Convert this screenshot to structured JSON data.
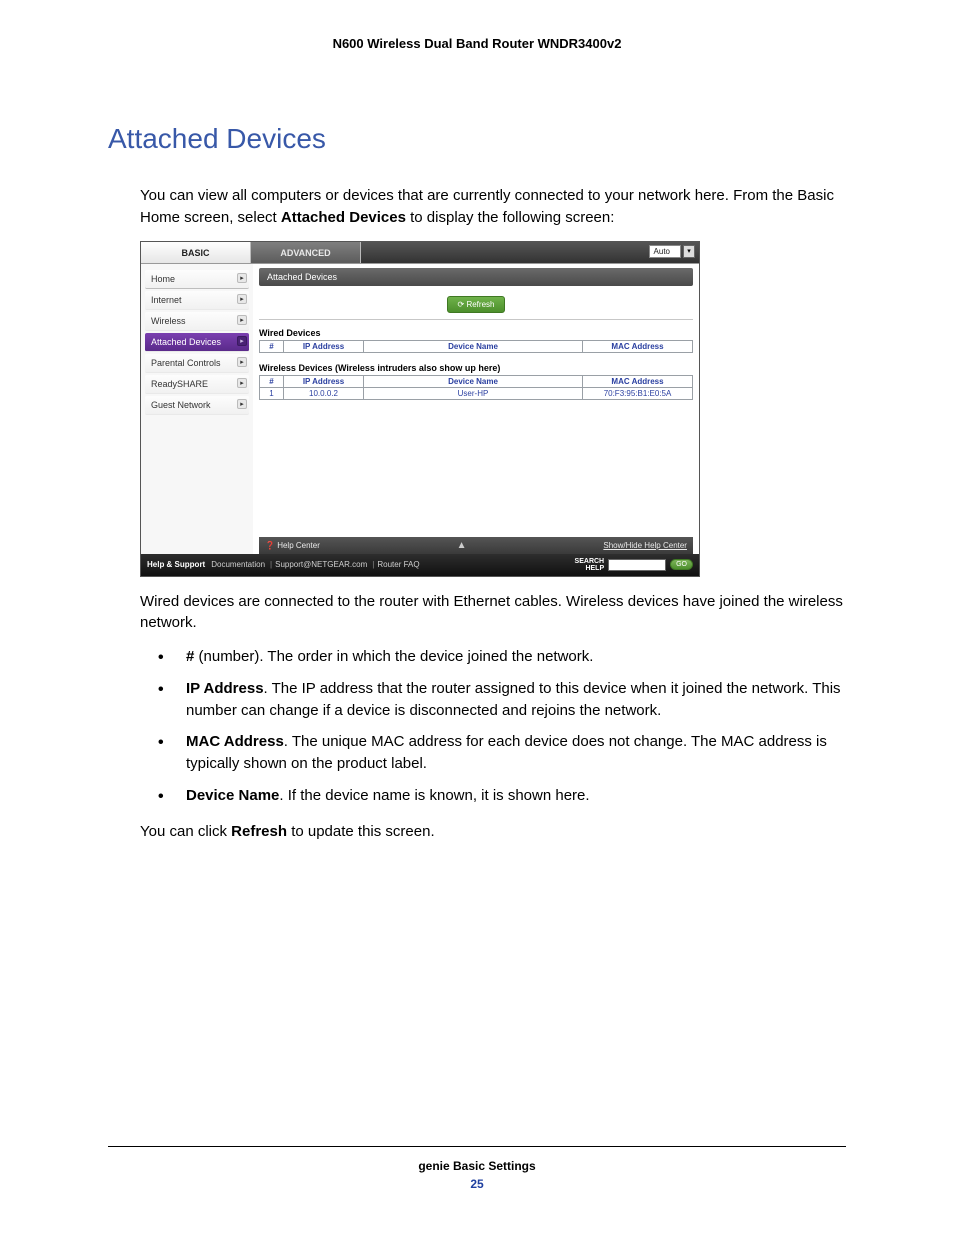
{
  "doc": {
    "header": "N600 Wireless Dual Band Router WNDR3400v2",
    "section_title": "Attached Devices",
    "intro_pre": "You can view all computers or devices that are currently connected to your network here. From the Basic Home screen, select ",
    "intro_bold": "Attached Devices",
    "intro_post": " to display the following screen:",
    "post_ss": "Wired devices are connected to the router with Ethernet cables. Wireless devices have joined the wireless network.",
    "bullets": [
      {
        "b": "#",
        "rest": " (number). The order in which the device joined the network."
      },
      {
        "b": "IP Address",
        "rest": ". The IP address that the router assigned to this device when it joined the network. This number can change if a device is disconnected and rejoins the network."
      },
      {
        "b": "MAC Address",
        "rest": ". The unique MAC address for each device does not change. The MAC address is typically shown on the product label."
      },
      {
        "b": "Device Name",
        "rest": ". If the device name is known, it is shown here."
      }
    ],
    "closing_pre": "You can click ",
    "closing_bold": "Refresh",
    "closing_post": " to update this screen.",
    "footer_chapter": "genie Basic Settings",
    "footer_page": "25"
  },
  "ui": {
    "tabs": {
      "basic": "BASIC",
      "advanced": "ADVANCED",
      "auto": "Auto"
    },
    "sidebar": [
      "Home",
      "Internet",
      "Wireless",
      "Attached Devices",
      "Parental Controls",
      "ReadySHARE",
      "Guest Network"
    ],
    "active_index": 3,
    "crumb": "Attached Devices",
    "refresh": "Refresh",
    "wired_title": "Wired Devices",
    "wireless_title": "Wireless Devices (Wireless intruders also show up here)",
    "columns": {
      "num": "#",
      "ip": "IP Address",
      "name": "Device Name",
      "mac": "MAC Address"
    },
    "wireless_rows": [
      {
        "num": "1",
        "ip": "10.0.0.2",
        "name": "User-HP",
        "mac": "70:F3:95:B1:E0:5A"
      }
    ],
    "helpbar": {
      "center": "Help Center",
      "toggle": "Show/Hide Help Center"
    },
    "supportbar": {
      "label": "Help & Support",
      "links": [
        "Documentation",
        "Support@NETGEAR.com",
        "Router FAQ"
      ],
      "search_label_1": "SEARCH",
      "search_label_2": "HELP",
      "go": "GO"
    },
    "colors": {
      "section_title": "#3858a8",
      "active_bg": "#5a2a8a",
      "refresh_bg": "#4c8f2c",
      "table_header_text": "#2a3fa0"
    }
  }
}
